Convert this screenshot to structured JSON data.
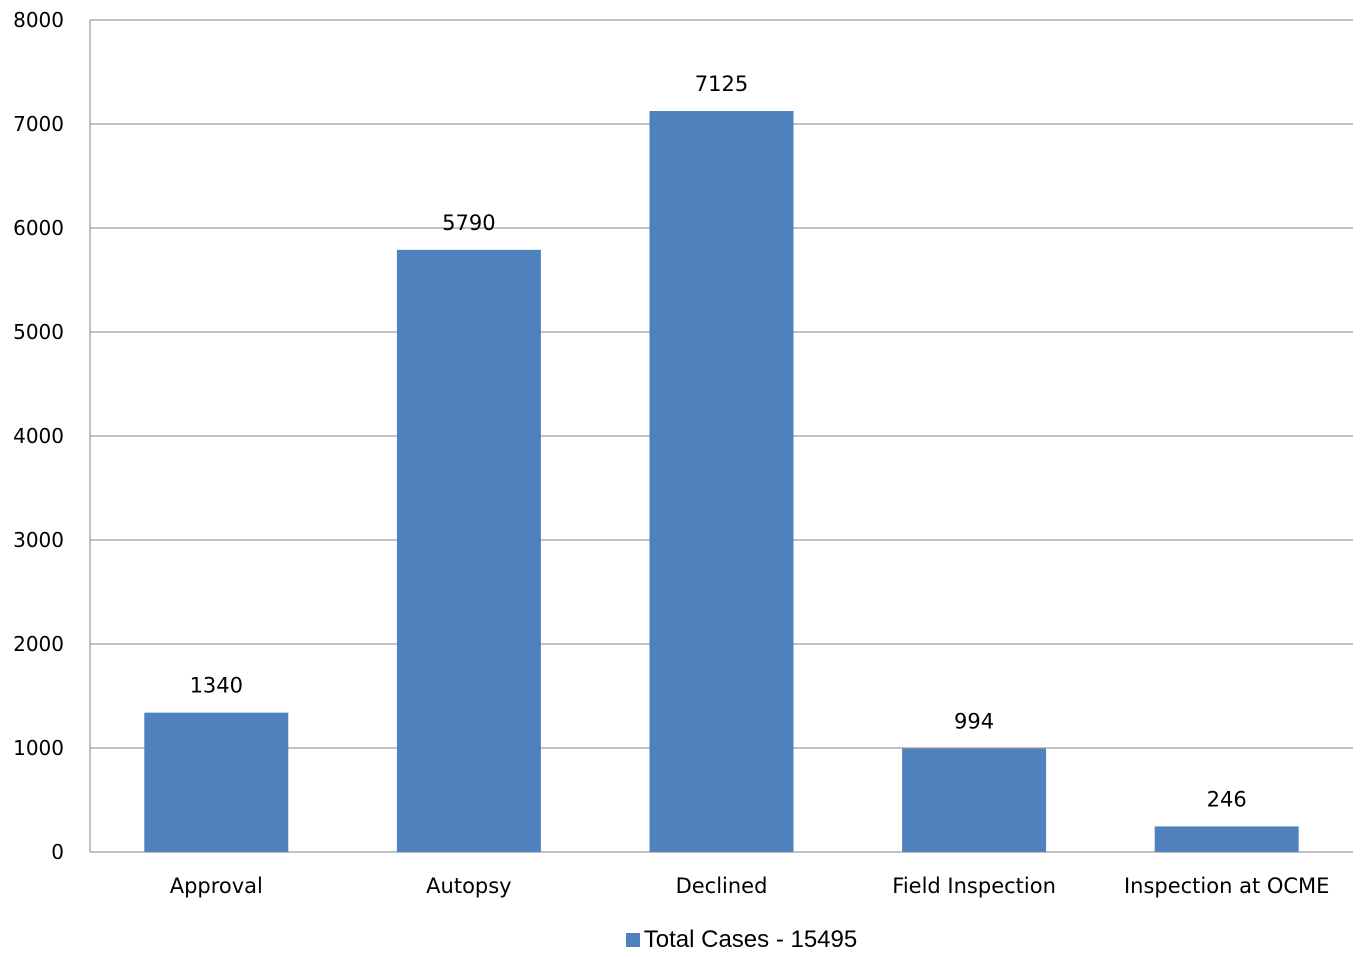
{
  "chart_data": {
    "type": "bar",
    "categories": [
      "Approval",
      "Autopsy",
      "Declined",
      "Field Inspection",
      "Inspection at OCME"
    ],
    "series": [
      {
        "name": "Total Cases - 15495",
        "values": [
          1340,
          5790,
          7125,
          994,
          246
        ],
        "color": "#4F81BD"
      }
    ],
    "title": "",
    "xlabel": "",
    "ylabel": "",
    "ylim": [
      0,
      8000
    ],
    "yticks": [
      0,
      1000,
      2000,
      3000,
      4000,
      5000,
      6000,
      7000,
      8000
    ],
    "grid": true,
    "legend_position": "bottom"
  }
}
